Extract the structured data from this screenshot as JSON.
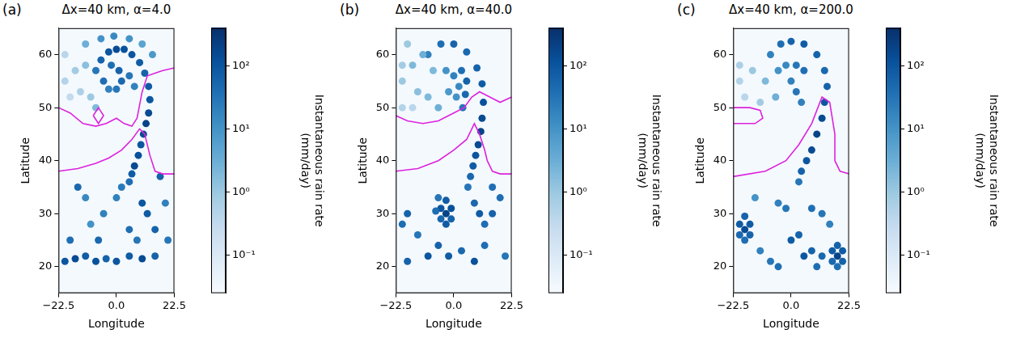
{
  "chart_data": [
    {
      "type": "scatter",
      "panel": "(a)",
      "title": "Δx=40 km, α=4.0",
      "x_label": "Longitude",
      "y_label": "Latitude",
      "xlim": [
        -22.5,
        22.5
      ],
      "xticks": [
        {
          "value": -22.5,
          "label": "−22.5"
        },
        {
          "value": 0,
          "label": "0.0"
        },
        22.5
      ],
      "ylim": [
        15,
        65
      ],
      "yticks": [
        20,
        30,
        40,
        50,
        60
      ],
      "grid": false,
      "rain": {
        "x": [
          -8,
          -6,
          -3,
          0,
          3,
          6,
          9,
          11,
          12.5,
          13,
          12.5,
          11.5,
          10.5,
          9.5,
          8.5,
          7,
          6,
          5,
          -5,
          -3,
          0,
          2,
          1,
          -2,
          5,
          7,
          -20,
          -16,
          -12,
          -18,
          -14,
          -10,
          -20,
          -8,
          -12,
          -6,
          -1,
          5,
          10,
          14,
          -15,
          10,
          12,
          15,
          20,
          5,
          -5,
          -10,
          0,
          -20,
          -16,
          -12,
          -8,
          -4,
          0,
          5,
          10,
          15,
          -18,
          -7,
          8,
          -12,
          2,
          19,
          17
        ],
        "y": [
          57,
          59,
          60.5,
          61,
          61,
          60,
          58.5,
          56.5,
          54,
          51.5,
          49,
          47,
          45,
          43,
          41,
          39,
          37.5,
          36,
          55,
          53.5,
          53.5,
          55,
          57,
          58,
          56,
          54,
          55,
          57,
          58,
          52,
          53,
          52,
          60,
          50,
          62,
          63,
          63.5,
          63,
          62,
          60,
          35,
          32,
          30,
          27,
          25,
          27,
          30,
          28,
          33,
          21,
          21.5,
          22,
          21,
          21.5,
          21,
          22,
          21.5,
          22,
          25,
          25,
          25,
          33,
          35,
          32,
          37
        ],
        "values": [
          30,
          60,
          100,
          150,
          120,
          100,
          80,
          60,
          80,
          100,
          150,
          200,
          150,
          100,
          120,
          150,
          80,
          40,
          40,
          20,
          30,
          50,
          60,
          40,
          30,
          20,
          0.5,
          0.8,
          1.5,
          0.3,
          0.6,
          1,
          0.4,
          2,
          3,
          10,
          15,
          10,
          5,
          8,
          50,
          100,
          80,
          60,
          30,
          40,
          20,
          10,
          20,
          100,
          150,
          80,
          120,
          60,
          100,
          80,
          150,
          60,
          40,
          50,
          30,
          15,
          25,
          20,
          60
        ]
      },
      "contours": [
        {
          "color": "#dd22dd",
          "x": [
            -22.5,
            -18,
            -13,
            -8,
            -4,
            0,
            3,
            6,
            8,
            10,
            12,
            15,
            18,
            22.5
          ],
          "y": [
            50,
            49,
            47,
            46.5,
            47,
            48,
            47,
            46.5,
            48,
            53,
            56,
            56.5,
            57,
            57.5
          ]
        },
        {
          "color": "#dd22dd",
          "x": [
            -22.5,
            -15,
            -8,
            -3,
            2,
            6,
            9,
            11,
            13,
            15,
            18,
            22.5
          ],
          "y": [
            38,
            38.5,
            39.5,
            40.5,
            42,
            44,
            46,
            45,
            41,
            38,
            37.5,
            37.5
          ]
        },
        {
          "color": "#dd22dd",
          "x": [
            -9,
            -7,
            -5,
            -7,
            -9
          ],
          "y": [
            48.5,
            50,
            48.5,
            47,
            48.5
          ]
        }
      ],
      "colorbar": {
        "label": "Instantaneous rain rate\n(mm/day)",
        "log": true,
        "lim": [
          0.025,
          400
        ],
        "ticks": [
          {
            "value": 0.1,
            "label": "10⁻¹"
          },
          {
            "value": 1,
            "label": "10⁰"
          },
          {
            "value": 10,
            "label": "10¹"
          },
          {
            "value": 100,
            "label": "10²"
          }
        ]
      }
    },
    {
      "type": "scatter",
      "panel": "(b)",
      "title": "Δx=40 km, α=40.0",
      "x_label": "Longitude",
      "y_label": "Latitude",
      "xlim": [
        -22.5,
        22.5
      ],
      "xticks": [
        {
          "value": -22.5,
          "label": "−22.5"
        },
        {
          "value": 0,
          "label": "0.0"
        },
        22.5
      ],
      "ylim": [
        15,
        65
      ],
      "yticks": [
        20,
        30,
        40,
        50,
        60
      ],
      "grid": false,
      "rain": {
        "x": [
          -10,
          -5,
          0,
          5,
          9,
          11,
          11.5,
          11,
          10.5,
          9.5,
          8.5,
          7.5,
          6.5,
          5.5,
          3,
          5,
          4.5,
          3.5,
          -3,
          0,
          2,
          1,
          -2,
          -20,
          -16,
          -12,
          -8,
          -14,
          -20,
          -18,
          -10,
          -6,
          -20,
          -16,
          -3,
          -5,
          -3,
          -1,
          -1,
          -3,
          -5,
          -7,
          -6,
          -18,
          -20,
          -14,
          8,
          10,
          12,
          15,
          18,
          -10,
          -6,
          -2,
          3,
          8,
          12,
          -18,
          20,
          15
        ],
        "y": [
          60,
          62,
          62,
          60.5,
          57.5,
          54.5,
          51,
          48,
          45.5,
          43,
          41,
          39,
          37,
          35,
          57,
          55,
          52.5,
          50,
          57,
          56,
          54,
          52,
          53,
          55,
          58,
          60,
          57,
          53,
          50,
          62,
          52,
          50,
          58,
          50,
          30,
          31,
          32.5,
          31,
          29,
          28,
          29,
          30.5,
          33,
          30,
          28,
          26,
          32,
          30,
          28,
          30,
          33,
          22,
          24,
          22,
          23,
          21,
          24,
          21,
          22,
          35
        ],
        "values": [
          20,
          40,
          60,
          50,
          60,
          80,
          120,
          150,
          200,
          150,
          100,
          80,
          50,
          30,
          40,
          60,
          50,
          30,
          10,
          20,
          15,
          10,
          8,
          1,
          2,
          3,
          2,
          1.5,
          0.5,
          1,
          2,
          3,
          0.8,
          0.4,
          200,
          100,
          80,
          120,
          60,
          80,
          50,
          40,
          30,
          60,
          40,
          30,
          50,
          80,
          40,
          60,
          40,
          100,
          60,
          80,
          50,
          120,
          40,
          60,
          30,
          40
        ]
      },
      "contours": [
        {
          "color": "#dd22dd",
          "x": [
            -22.5,
            -18,
            -12,
            -6,
            0,
            4,
            7,
            10,
            14,
            18,
            22.5
          ],
          "y": [
            48.5,
            47.5,
            47,
            47.5,
            49,
            50,
            52,
            53,
            52,
            51,
            52
          ]
        },
        {
          "color": "#dd22dd",
          "x": [
            -22.5,
            -14,
            -6,
            0,
            5,
            8,
            10,
            12,
            13,
            15,
            18,
            22.5
          ],
          "y": [
            38,
            38.5,
            40,
            42,
            44,
            47,
            45,
            42,
            40,
            38,
            37.5,
            37.5
          ]
        }
      ],
      "colorbar": {
        "label": "Instantaneous rain rate\n(mm/day)",
        "log": true,
        "lim": [
          0.025,
          400
        ],
        "ticks": [
          {
            "value": 0.1,
            "label": "10⁻¹"
          },
          {
            "value": 1,
            "label": "10⁰"
          },
          {
            "value": 10,
            "label": "10¹"
          },
          {
            "value": 100,
            "label": "10²"
          }
        ]
      }
    },
    {
      "type": "scatter",
      "panel": "(c)",
      "title": "Δx=40 km, α=200.0",
      "x_label": "Longitude",
      "y_label": "Latitude",
      "xlim": [
        -22.5,
        22.5
      ],
      "xticks": [
        {
          "value": -22.5,
          "label": "−22.5"
        },
        {
          "value": 0,
          "label": "0.0"
        },
        22.5
      ],
      "ylim": [
        15,
        65
      ],
      "yticks": [
        20,
        30,
        40,
        50,
        60
      ],
      "grid": false,
      "rain": {
        "x": [
          -8,
          -4,
          0,
          5,
          10,
          13,
          14,
          13,
          12,
          10,
          8,
          6,
          4,
          3,
          -2,
          2,
          5,
          -5,
          0,
          2,
          4,
          -20,
          -15,
          -10,
          -18,
          -12,
          -20,
          -6,
          -18,
          -20,
          -18,
          -16,
          -16,
          -18,
          -20,
          18,
          16,
          18,
          20,
          20,
          18,
          16,
          0,
          3,
          5,
          8,
          10,
          12,
          -5,
          -8,
          -12,
          12,
          8,
          -5,
          -2,
          -14,
          15
        ],
        "y": [
          60,
          62,
          62.5,
          62,
          60,
          57,
          54,
          51,
          48,
          45,
          42,
          40,
          38,
          36,
          58,
          58,
          57,
          57,
          55,
          53,
          51,
          55,
          57,
          55,
          52,
          51,
          58,
          52,
          27,
          28,
          29.5,
          28,
          26,
          25,
          26,
          22,
          23,
          24,
          23,
          21,
          20,
          21,
          25,
          26,
          22,
          23,
          20,
          22,
          20,
          21,
          23,
          30,
          31,
          32,
          31,
          33,
          28
        ],
        "values": [
          20,
          40,
          60,
          80,
          60,
          50,
          60,
          100,
          150,
          200,
          150,
          100,
          60,
          30,
          15,
          30,
          40,
          10,
          20,
          30,
          20,
          0.5,
          1,
          2,
          0.4,
          0.8,
          0.6,
          3,
          150,
          80,
          60,
          80,
          60,
          40,
          50,
          200,
          80,
          60,
          80,
          60,
          40,
          50,
          80,
          60,
          100,
          60,
          40,
          50,
          40,
          30,
          20,
          30,
          40,
          20,
          30,
          10,
          20
        ]
      },
      "contours": [
        {
          "color": "#dd22dd",
          "x": [
            -22.5,
            -16,
            -12,
            -11,
            -14,
            -22.5
          ],
          "y": [
            50,
            50,
            49.5,
            48,
            47,
            47
          ]
        },
        {
          "color": "#dd22dd",
          "x": [
            -22.5,
            -10,
            -2,
            3,
            8,
            12,
            15,
            17,
            17,
            19,
            22.5
          ],
          "y": [
            37,
            38,
            40,
            43,
            47,
            52,
            51,
            45,
            40,
            38,
            37.5
          ]
        }
      ],
      "colorbar": {
        "label": "Instantaneous rain rate\n(mm/day)",
        "log": true,
        "lim": [
          0.025,
          400
        ],
        "ticks": [
          {
            "value": 0.1,
            "label": "10⁻¹"
          },
          {
            "value": 1,
            "label": "10⁰"
          },
          {
            "value": 10,
            "label": "10¹"
          },
          {
            "value": 100,
            "label": "10²"
          }
        ]
      }
    }
  ]
}
